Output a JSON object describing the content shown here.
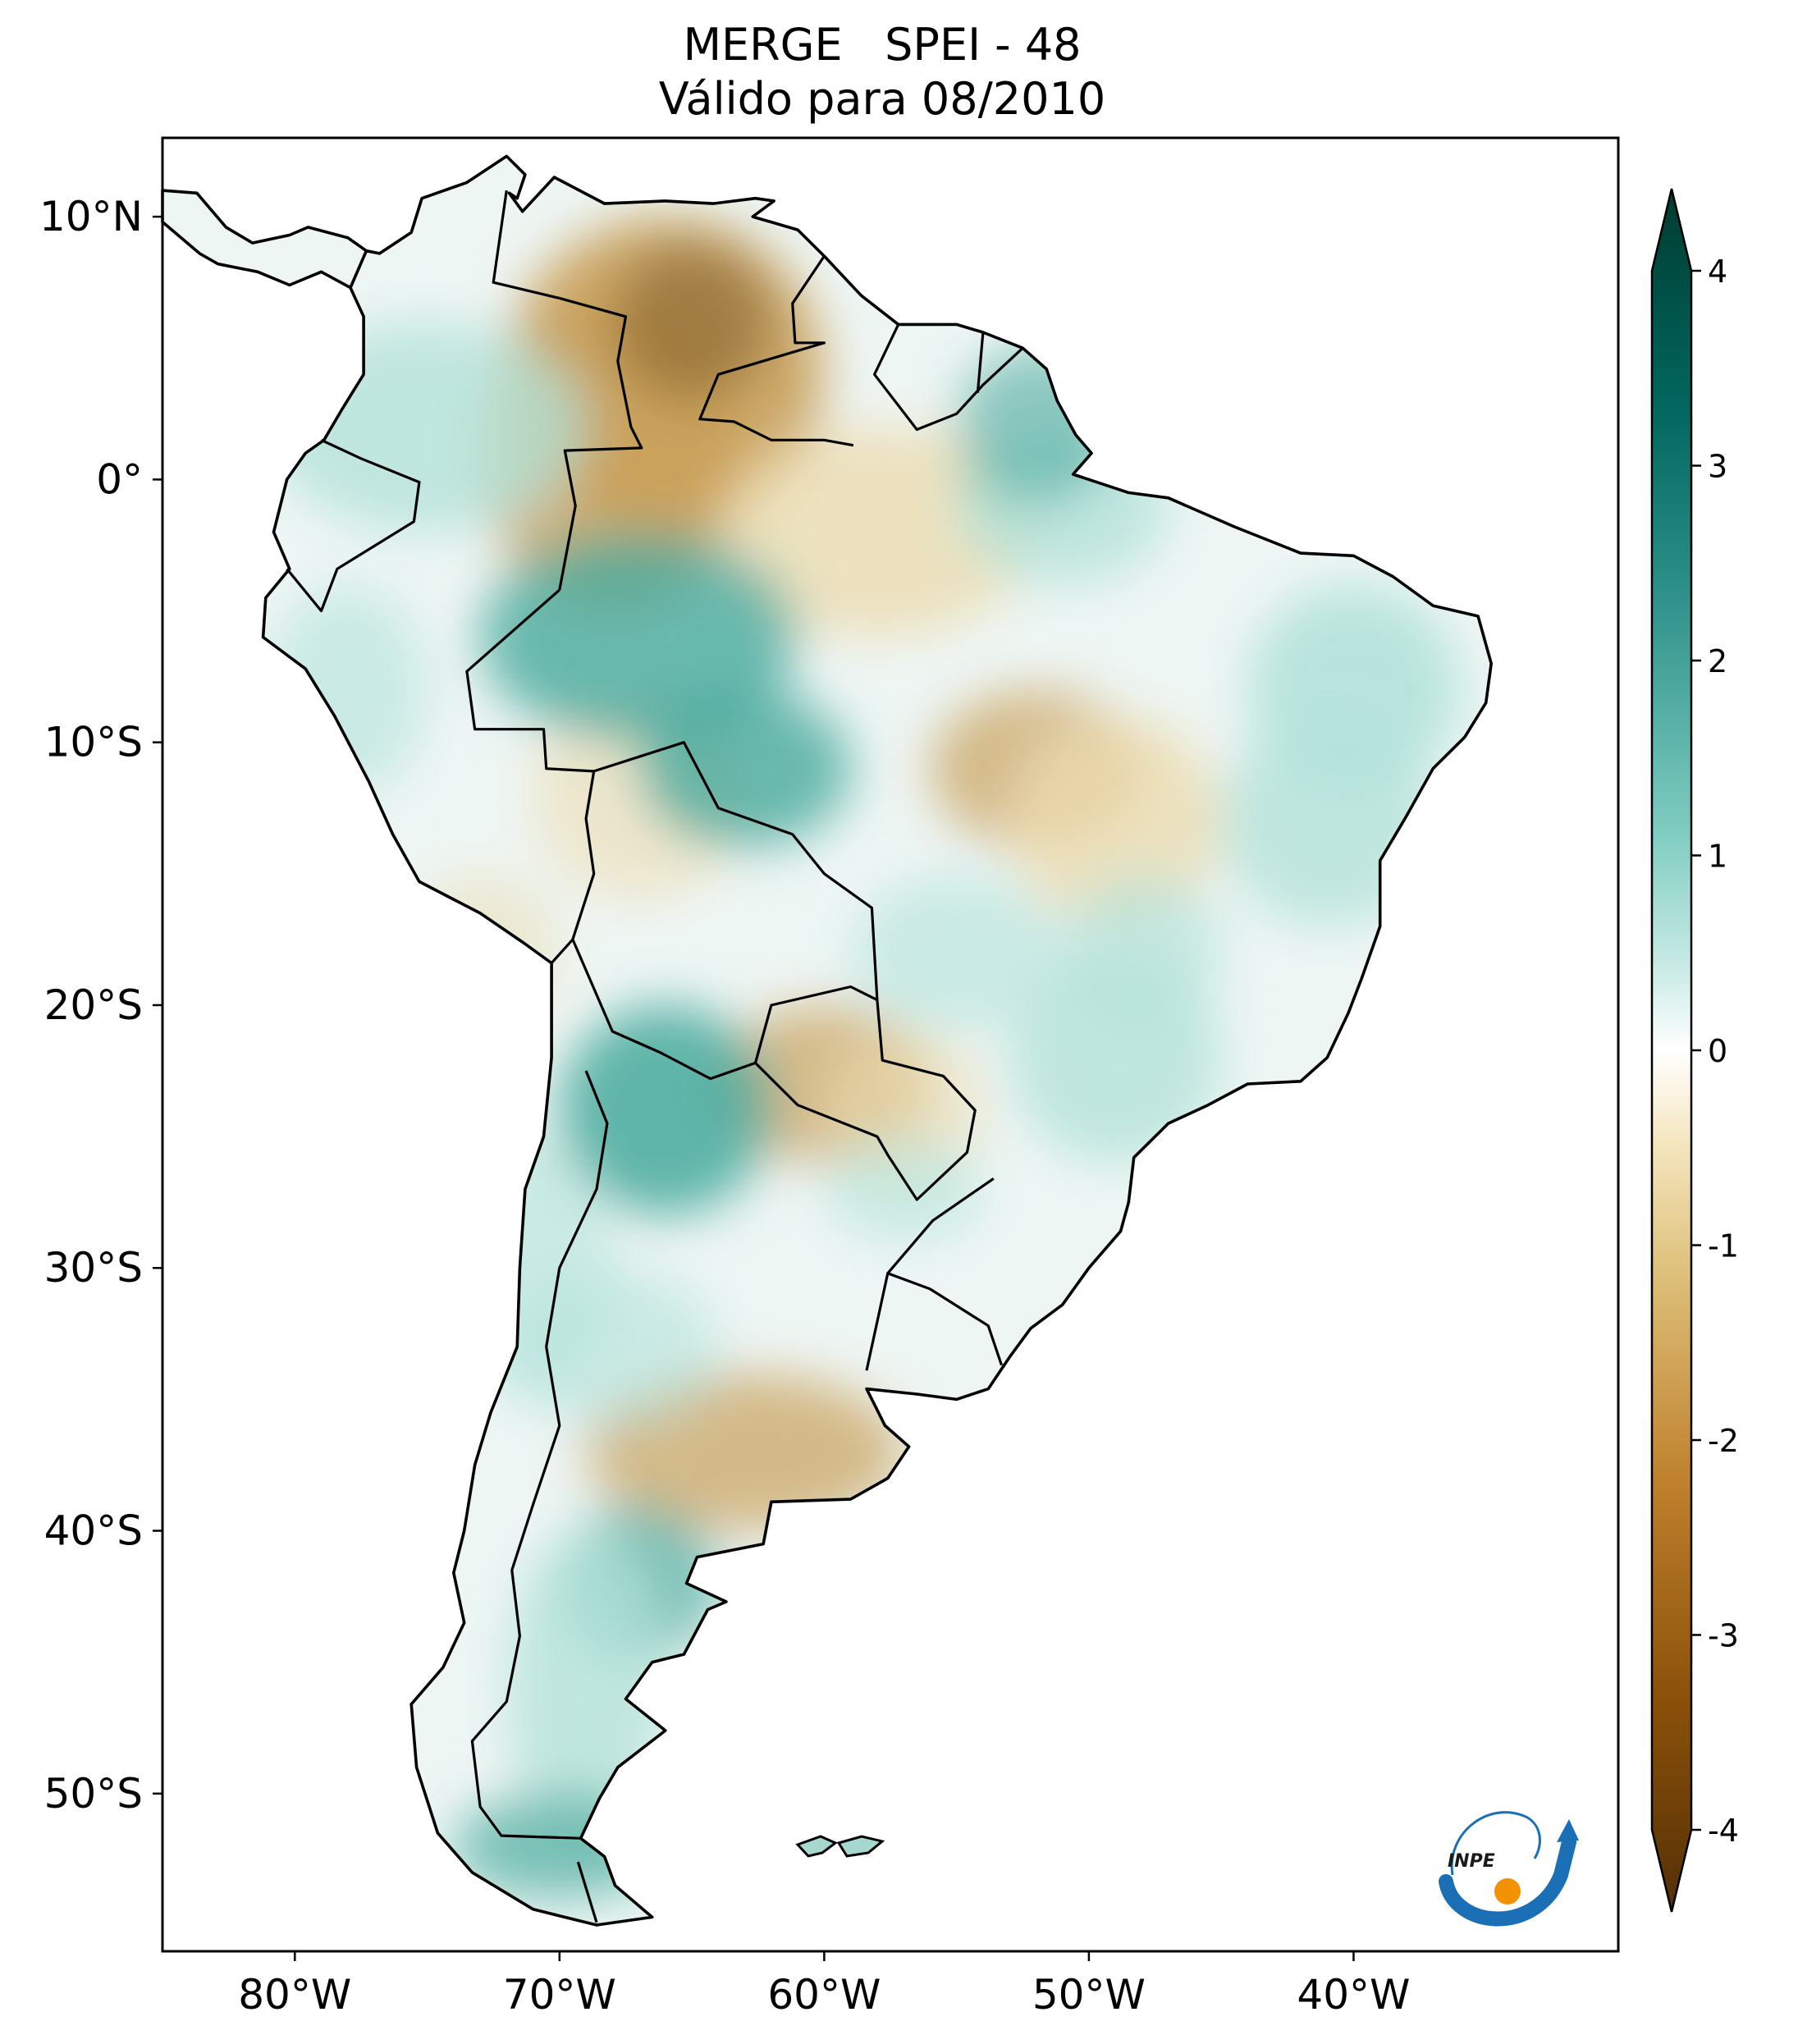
{
  "title": {
    "line1": "MERGE   SPEI - 48",
    "line2": "Válido para 08/2010"
  },
  "map": {
    "extent": {
      "lon_min": -85,
      "lon_max": -30,
      "lat_min": -56,
      "lat_max": 13
    },
    "lat_ticks": [
      {
        "value": 10,
        "label": "10°N"
      },
      {
        "value": 0,
        "label": "0°"
      },
      {
        "value": -10,
        "label": "10°S"
      },
      {
        "value": -20,
        "label": "20°S"
      },
      {
        "value": -30,
        "label": "30°S"
      },
      {
        "value": -40,
        "label": "40°S"
      },
      {
        "value": -50,
        "label": "50°S"
      }
    ],
    "lon_ticks": [
      {
        "value": -80,
        "label": "80°W"
      },
      {
        "value": -70,
        "label": "70°W"
      },
      {
        "value": -60,
        "label": "60°W"
      },
      {
        "value": -50,
        "label": "50°W"
      },
      {
        "value": -40,
        "label": "40°W"
      }
    ]
  },
  "colorbar": {
    "min": -4,
    "max": 4,
    "colormap": "BrBG",
    "ticks": [
      {
        "value": 4,
        "label": "4"
      },
      {
        "value": 3,
        "label": "3"
      },
      {
        "value": 2,
        "label": "2"
      },
      {
        "value": 1,
        "label": "1"
      },
      {
        "value": 0,
        "label": "0"
      },
      {
        "value": -1,
        "label": "-1"
      },
      {
        "value": -2,
        "label": "-2"
      },
      {
        "value": -3,
        "label": "-3"
      },
      {
        "value": -4,
        "label": "-4"
      }
    ]
  },
  "logo": {
    "text": "INPE",
    "blue": "#1a6fb5",
    "orange": "#f39200"
  },
  "colors": {
    "wet_strong": "#00554a",
    "wet": "#47a99c",
    "wet_light": "#b3e2da",
    "neutral": "#f5f5f5",
    "dry_light": "#ecdcb0",
    "dry": "#c9a05a",
    "dry_strong": "#543005"
  }
}
